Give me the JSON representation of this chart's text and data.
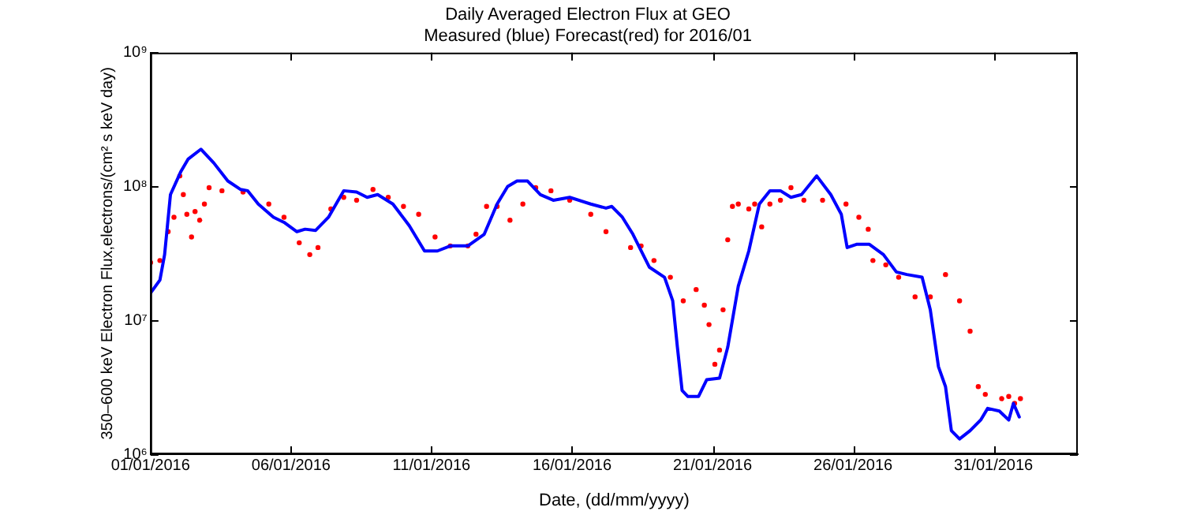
{
  "chart_data": {
    "type": "line",
    "title": "Daily Averaged Electron Flux at GEO",
    "subtitle": "Measured (blue) Forecast(red) for 2016/01",
    "xlabel": "Date, (dd/mm/yyyy)",
    "ylabel": "350–600 keV Electron Flux,electrons/(cm² s keV day)",
    "log": "y",
    "legend": false,
    "xlim": [
      "2016-01-01",
      "2016-02-03"
    ],
    "xticks": [
      {
        "value": "2016-01-01",
        "label": "01/01/2016"
      },
      {
        "value": "2016-01-06",
        "label": "06/01/2016"
      },
      {
        "value": "2016-01-11",
        "label": "11/01/2016"
      },
      {
        "value": "2016-01-16",
        "label": "16/01/2016"
      },
      {
        "value": "2016-01-21",
        "label": "21/01/2016"
      },
      {
        "value": "2016-01-26",
        "label": "26/01/2016"
      },
      {
        "value": "2016-01-31",
        "label": "31/01/2016"
      }
    ],
    "ylim": [
      1000000,
      1000000000
    ],
    "yticks": [
      {
        "value": 1000000,
        "label": "10⁶"
      },
      {
        "value": 10000000,
        "label": "10⁷"
      },
      {
        "value": 100000000,
        "label": "10⁸"
      },
      {
        "value": 1000000000,
        "label": "10⁹"
      }
    ],
    "series": [
      {
        "type": "line",
        "color": "#0000ff",
        "marker": "none",
        "line_style": "solid",
        "x": [
          "2016-01-01T00:00",
          "2016-01-01T08:00",
          "2016-01-01T12:00",
          "2016-01-01T17:00",
          "2016-01-02T02:00",
          "2016-01-02T08:00",
          "2016-01-02T19:00",
          "2016-01-03T06:00",
          "2016-01-03T18:00",
          "2016-01-04T05:00",
          "2016-01-04T11:00",
          "2016-01-04T20:00",
          "2016-01-05T09:00",
          "2016-01-05T18:00",
          "2016-01-06T05:00",
          "2016-01-06T12:00",
          "2016-01-06T21:00",
          "2016-01-07T08:00",
          "2016-01-07T21:00",
          "2016-01-08T08:00",
          "2016-01-08T17:00",
          "2016-01-09T02:00",
          "2016-01-09T15:00",
          "2016-01-10T05:00",
          "2016-01-10T18:00",
          "2016-01-11T05:00",
          "2016-01-11T16:00",
          "2016-01-12T07:00",
          "2016-01-12T21:00",
          "2016-01-13T08:00",
          "2016-01-13T17:00",
          "2016-01-14T01:00",
          "2016-01-14T10:00",
          "2016-01-14T21:00",
          "2016-01-15T08:00",
          "2016-01-15T22:00",
          "2016-01-16T16:00",
          "2016-01-17T05:00",
          "2016-01-17T10:00",
          "2016-01-17T19:00",
          "2016-01-18T04:00",
          "2016-01-18T18:00",
          "2016-01-19T07:00",
          "2016-01-19T14:00",
          "2016-01-19T18:00",
          "2016-01-19T22:00",
          "2016-01-20T03:00",
          "2016-01-20T12:00",
          "2016-01-20T19:00",
          "2016-01-21T06:00",
          "2016-01-21T13:00",
          "2016-01-21T22:00",
          "2016-01-22T07:00",
          "2016-01-22T16:00",
          "2016-01-23T01:00",
          "2016-01-23T10:00",
          "2016-01-23T19:00",
          "2016-01-24T04:00",
          "2016-01-24T17:00",
          "2016-01-25T05:00",
          "2016-01-25T14:00",
          "2016-01-25T19:00",
          "2016-01-26T03:00",
          "2016-01-26T14:00",
          "2016-01-27T02:00",
          "2016-01-27T13:00",
          "2016-01-27T22:00",
          "2016-01-28T11:00",
          "2016-01-28T18:00",
          "2016-01-29T01:00",
          "2016-01-29T07:00",
          "2016-01-29T12:00",
          "2016-01-29T19:00",
          "2016-01-30T04:00",
          "2016-01-30T13:00",
          "2016-01-30T19:00",
          "2016-01-31T05:00",
          "2016-01-31T13:00",
          "2016-01-31T17:00",
          "2016-01-31T22:00"
        ],
        "values": [
          16000000,
          20000000,
          31000000,
          87000000,
          130000000,
          160000000,
          190000000,
          150000000,
          110000000,
          95000000,
          93000000,
          74000000,
          59000000,
          54000000,
          46000000,
          48000000,
          47000000,
          59000000,
          93000000,
          91000000,
          83000000,
          87000000,
          74000000,
          51000000,
          33000000,
          33000000,
          36000000,
          36000000,
          44000000,
          74000000,
          100000000,
          110000000,
          110000000,
          87000000,
          79000000,
          83000000,
          74000000,
          69000000,
          71000000,
          59000000,
          44000000,
          25000000,
          21000000,
          14000000,
          6300000,
          3000000,
          2700000,
          2700000,
          3600000,
          3700000,
          6300000,
          18000000,
          33000000,
          74000000,
          93000000,
          93000000,
          83000000,
          87000000,
          120000000,
          87000000,
          62000000,
          35000000,
          37000000,
          37000000,
          31000000,
          23000000,
          22000000,
          21000000,
          12000000,
          4500000,
          3200000,
          1500000,
          1300000,
          1500000,
          1800000,
          2200000,
          2100000,
          1800000,
          2400000,
          1900000
        ]
      },
      {
        "type": "scatter",
        "color": "#ff0000",
        "marker": "circle",
        "x": [
          "2016-01-01T00:00",
          "2016-01-01T08:00",
          "2016-01-01T15:00",
          "2016-01-01T20:00",
          "2016-01-02T01:00",
          "2016-01-02T04:00",
          "2016-01-02T07:00",
          "2016-01-02T11:00",
          "2016-01-02T14:00",
          "2016-01-02T18:00",
          "2016-01-02T22:00",
          "2016-01-03T02:00",
          "2016-01-03T13:00",
          "2016-01-04T07:00",
          "2016-01-05T05:00",
          "2016-01-05T18:00",
          "2016-01-06T07:00",
          "2016-01-06T16:00",
          "2016-01-06T23:00",
          "2016-01-07T10:00",
          "2016-01-07T21:00",
          "2016-01-08T08:00",
          "2016-01-08T22:00",
          "2016-01-09T11:00",
          "2016-01-10T00:00",
          "2016-01-10T13:00",
          "2016-01-11T03:00",
          "2016-01-11T16:00",
          "2016-01-12T07:00",
          "2016-01-12T14:00",
          "2016-01-12T23:00",
          "2016-01-13T08:00",
          "2016-01-13T19:00",
          "2016-01-14T06:00",
          "2016-01-14T17:00",
          "2016-01-15T06:00",
          "2016-01-15T22:00",
          "2016-01-16T16:00",
          "2016-01-17T05:00",
          "2016-01-18T02:00",
          "2016-01-18T11:00",
          "2016-01-18T22:00",
          "2016-01-19T12:00",
          "2016-01-19T23:00",
          "2016-01-20T10:00",
          "2016-01-20T17:00",
          "2016-01-20T21:00",
          "2016-01-21T02:00",
          "2016-01-21T06:00",
          "2016-01-21T09:00",
          "2016-01-21T13:00",
          "2016-01-21T17:00",
          "2016-01-21T22:00",
          "2016-01-22T07:00",
          "2016-01-22T12:00",
          "2016-01-22T18:00",
          "2016-01-23T01:00",
          "2016-01-23T10:00",
          "2016-01-23T19:00",
          "2016-01-24T06:00",
          "2016-01-24T22:00",
          "2016-01-25T18:00",
          "2016-01-26T05:00",
          "2016-01-26T13:00",
          "2016-01-26T17:00",
          "2016-01-27T04:00",
          "2016-01-27T15:00",
          "2016-01-28T05:00",
          "2016-01-28T18:00",
          "2016-01-29T07:00",
          "2016-01-29T19:00",
          "2016-01-30T04:00",
          "2016-01-30T11:00",
          "2016-01-30T17:00",
          "2016-01-31T07:00",
          "2016-01-31T13:00",
          "2016-01-31T18:00",
          "2016-01-31T23:00"
        ],
        "values": [
          27000000,
          28000000,
          46000000,
          59000000,
          120000000,
          87000000,
          62000000,
          42000000,
          65000000,
          56000000,
          74000000,
          98000000,
          93000000,
          91000000,
          74000000,
          59000000,
          38000000,
          31000000,
          35000000,
          68000000,
          83000000,
          79000000,
          95000000,
          83000000,
          71000000,
          62000000,
          42000000,
          36000000,
          36000000,
          44000000,
          71000000,
          71000000,
          56000000,
          74000000,
          98000000,
          93000000,
          79000000,
          62000000,
          46000000,
          35000000,
          36000000,
          28000000,
          21000000,
          14000000,
          17000000,
          13000000,
          9300000,
          4700000,
          6000000,
          12000000,
          40000000,
          71000000,
          74000000,
          68000000,
          74000000,
          50000000,
          74000000,
          79000000,
          98000000,
          79000000,
          79000000,
          74000000,
          59000000,
          48000000,
          28000000,
          26000000,
          21000000,
          15000000,
          15000000,
          22000000,
          14000000,
          8300000,
          3200000,
          2800000,
          2600000,
          2700000,
          2400000,
          2600000
        ]
      }
    ]
  }
}
